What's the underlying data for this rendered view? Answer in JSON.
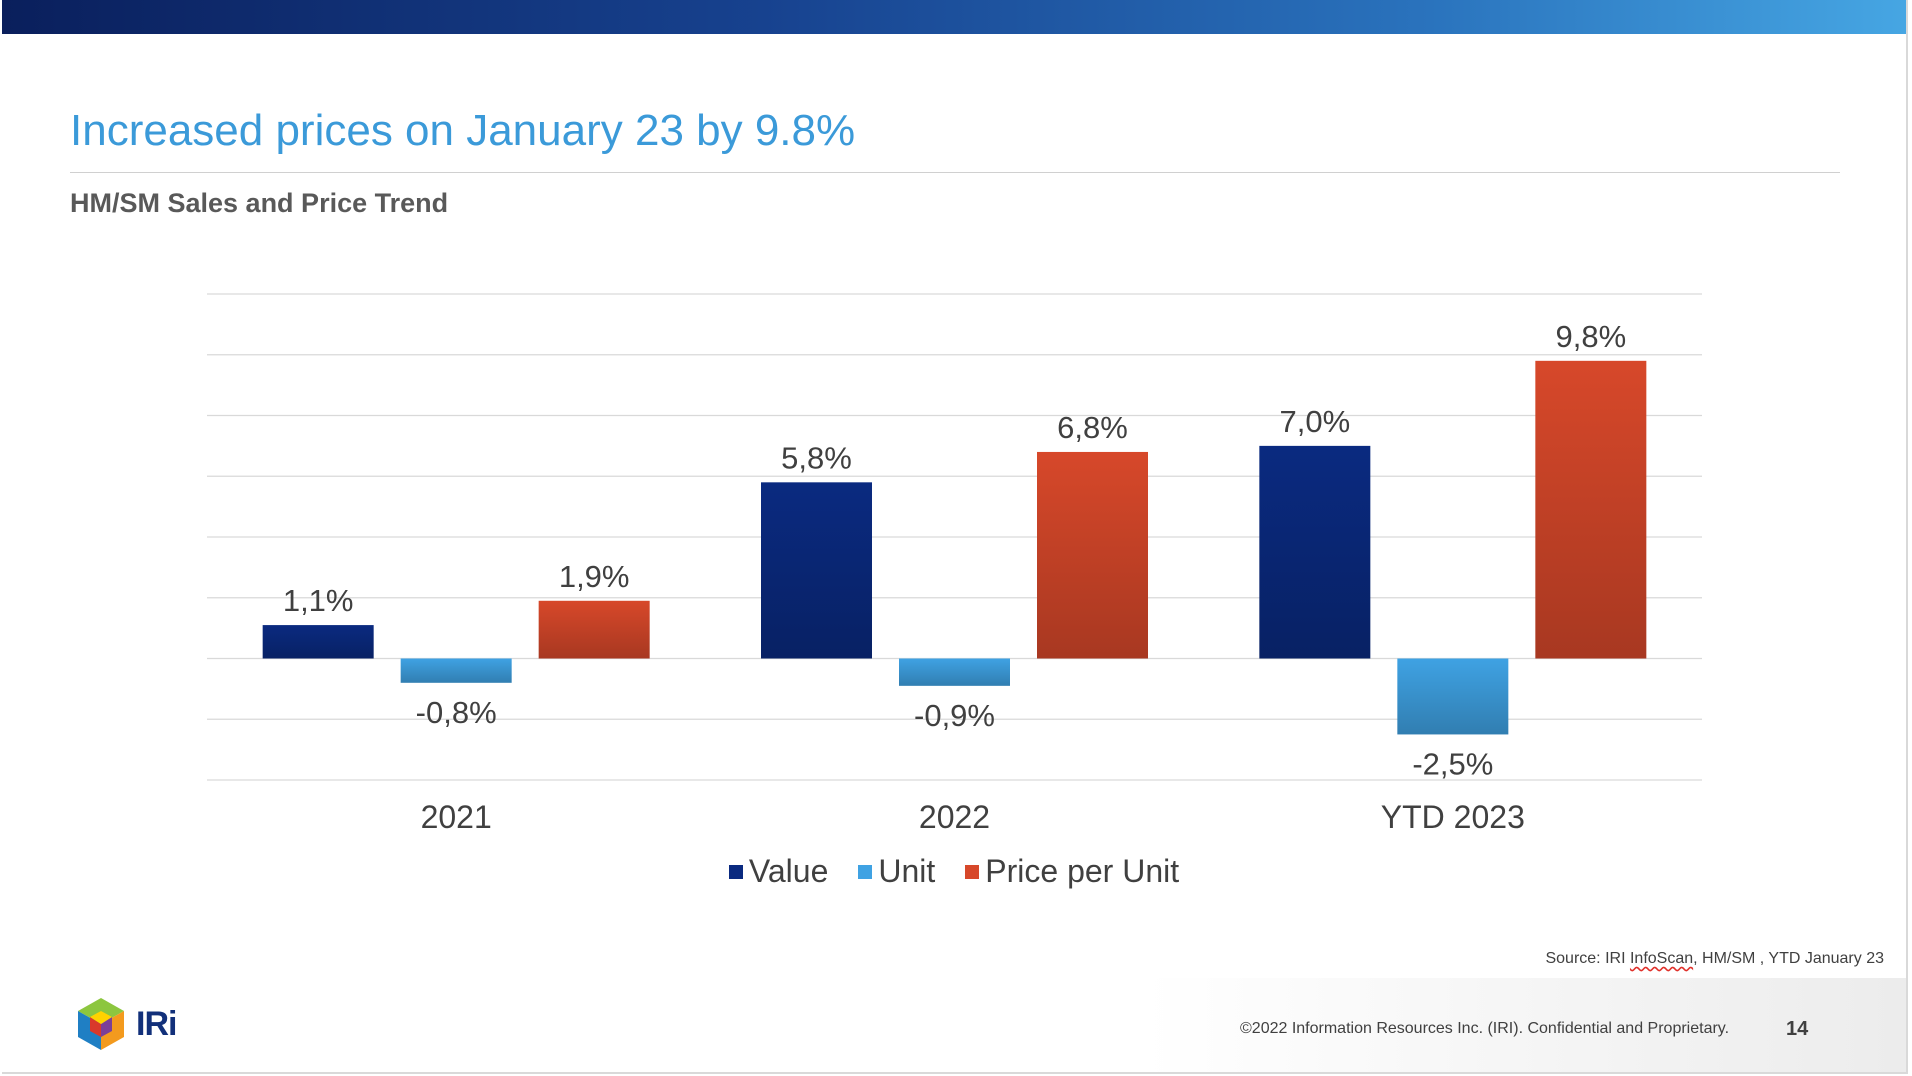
{
  "header": {
    "title": "Increased prices on January 23 by 9.8%",
    "subtitle": "HM/SM Sales and Price Trend"
  },
  "colors": {
    "top_bar_start": "#0a1f5c",
    "top_bar_end": "#46a6e3",
    "title": "#3b9ad9"
  },
  "chart_data": {
    "type": "bar",
    "categories": [
      "2021",
      "2022",
      "YTD 2023"
    ],
    "series": [
      {
        "name": "Value",
        "values": [
          1.1,
          5.8,
          7.0
        ],
        "labels": [
          "1,1%",
          "5,8%",
          "7,0%"
        ],
        "color": "#0a2a80"
      },
      {
        "name": "Unit",
        "values": [
          -0.8,
          -0.9,
          -2.5
        ],
        "labels": [
          "-0,8%",
          "-0,9%",
          "-2,5%"
        ],
        "color": "#3fa2e3"
      },
      {
        "name": "Price per Unit",
        "values": [
          1.9,
          6.8,
          9.8
        ],
        "labels": [
          "1,9%",
          "6,8%",
          "9,8%"
        ],
        "color": "#d7482a"
      }
    ],
    "ylim": [
      -4,
      12
    ],
    "grid": true,
    "legend": "bottom"
  },
  "footer": {
    "source_prefix": "Source: IRI ",
    "source_squiggle": "InfoScan",
    "source_suffix": ", HM/SM , YTD January 23",
    "copyright": "©2022 Information Resources Inc. (IRI). Confidential and Proprietary.",
    "page_number": "14",
    "logo_text": "IRi"
  }
}
